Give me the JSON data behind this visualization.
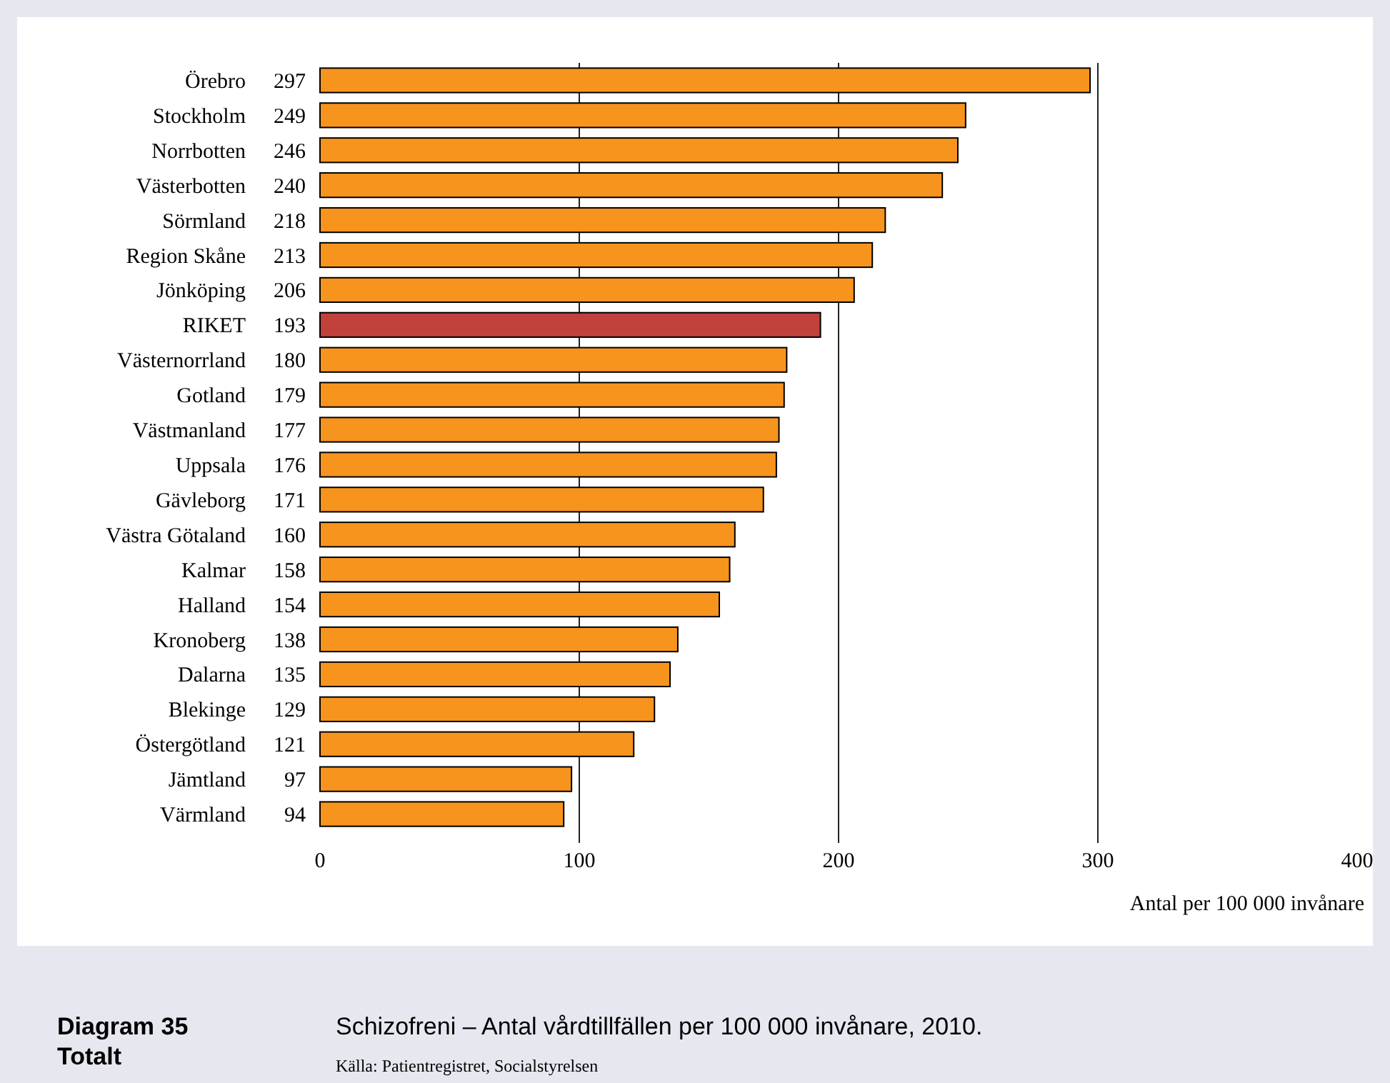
{
  "chart_data": {
    "type": "bar",
    "orientation": "horizontal",
    "title": "Schizofreni – Antal vårdtillfällen per 100 000 invånare, 2010.",
    "xlabel": "Antal per 100 000 invånare",
    "annotations": [
      "Diagram 35\nTotalt",
      "Källa: Patientregistret, Socialstyrelsen"
    ],
    "categories": [
      "Örebro",
      "Stockholm",
      "Norrbotten",
      "Västerbotten",
      "Sörmland",
      "Region Skåne",
      "Jönköping",
      "RIKET",
      "Västernorrland",
      "Gotland",
      "Västmanland",
      "Uppsala",
      "Gävleborg",
      "Västra Götaland",
      "Kalmar",
      "Halland",
      "Kronoberg",
      "Dalarna",
      "Blekinge",
      "Östergötland",
      "Jämtland",
      "Värmland"
    ],
    "values": [
      297,
      249,
      246,
      240,
      218,
      213,
      206,
      193,
      180,
      179,
      177,
      176,
      171,
      160,
      158,
      154,
      138,
      135,
      129,
      121,
      97,
      94
    ],
    "colors": [
      "#f7941d",
      "#f7941d",
      "#f7941d",
      "#f7941d",
      "#f7941d",
      "#f7941d",
      "#f7941d",
      "#c1413c",
      "#f7941d",
      "#f7941d",
      "#f7941d",
      "#f7941d",
      "#f7941d",
      "#f7941d",
      "#f7941d",
      "#f7941d",
      "#f7941d",
      "#f7941d",
      "#f7941d",
      "#f7941d",
      "#f7941d",
      "#f7941d"
    ],
    "xlim": [
      0,
      400
    ],
    "xticks": [
      0,
      100,
      200,
      300,
      400
    ],
    "grid": "x",
    "data_labels": true
  }
}
